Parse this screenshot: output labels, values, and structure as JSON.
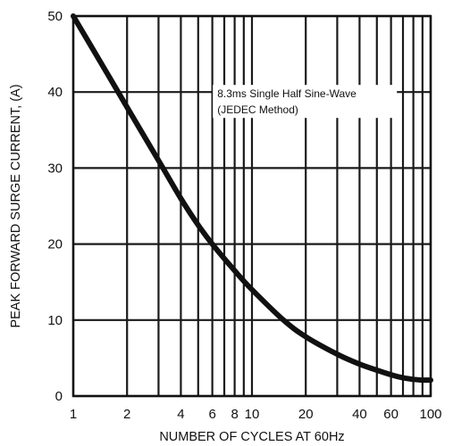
{
  "chart_data": {
    "type": "line",
    "xlabel": "NUMBER OF CYCLES AT 60Hz",
    "ylabel": "PEAK FORWARD SURGE CURRENT, (A)",
    "x_scale": "log",
    "xlim": [
      1,
      100
    ],
    "ylim": [
      0,
      50
    ],
    "x_ticks": [
      1,
      2,
      4,
      6,
      8,
      10,
      20,
      40,
      60,
      100
    ],
    "x_tick_labels": [
      "1",
      "2",
      "4",
      "6",
      "8",
      "10",
      "20",
      "40",
      "60",
      "100"
    ],
    "y_ticks": [
      0,
      10,
      20,
      30,
      40,
      50
    ],
    "y_tick_labels": [
      "0",
      "10",
      "20",
      "30",
      "40",
      "50"
    ],
    "x_gridlines": [
      1,
      2,
      3,
      4,
      5,
      6,
      7,
      8,
      9,
      10,
      20,
      30,
      40,
      50,
      60,
      70,
      80,
      90,
      100
    ],
    "grid": true,
    "annotation": {
      "line1": "8.3ms Single Half Sine-Wave",
      "line2": "(JEDEC Method)",
      "x": 20,
      "y": 40
    },
    "series": [
      {
        "x": [
          1,
          1.5,
          2,
          3,
          4,
          5,
          6,
          8,
          10,
          15,
          20,
          30,
          40,
          50,
          60,
          70,
          80,
          90,
          100
        ],
        "y": [
          50,
          43,
          38,
          31,
          26,
          22.5,
          20,
          16.5,
          14,
          10,
          7.8,
          5.5,
          4.2,
          3.4,
          2.8,
          2.4,
          2.2,
          2.1,
          2.1
        ]
      }
    ]
  }
}
